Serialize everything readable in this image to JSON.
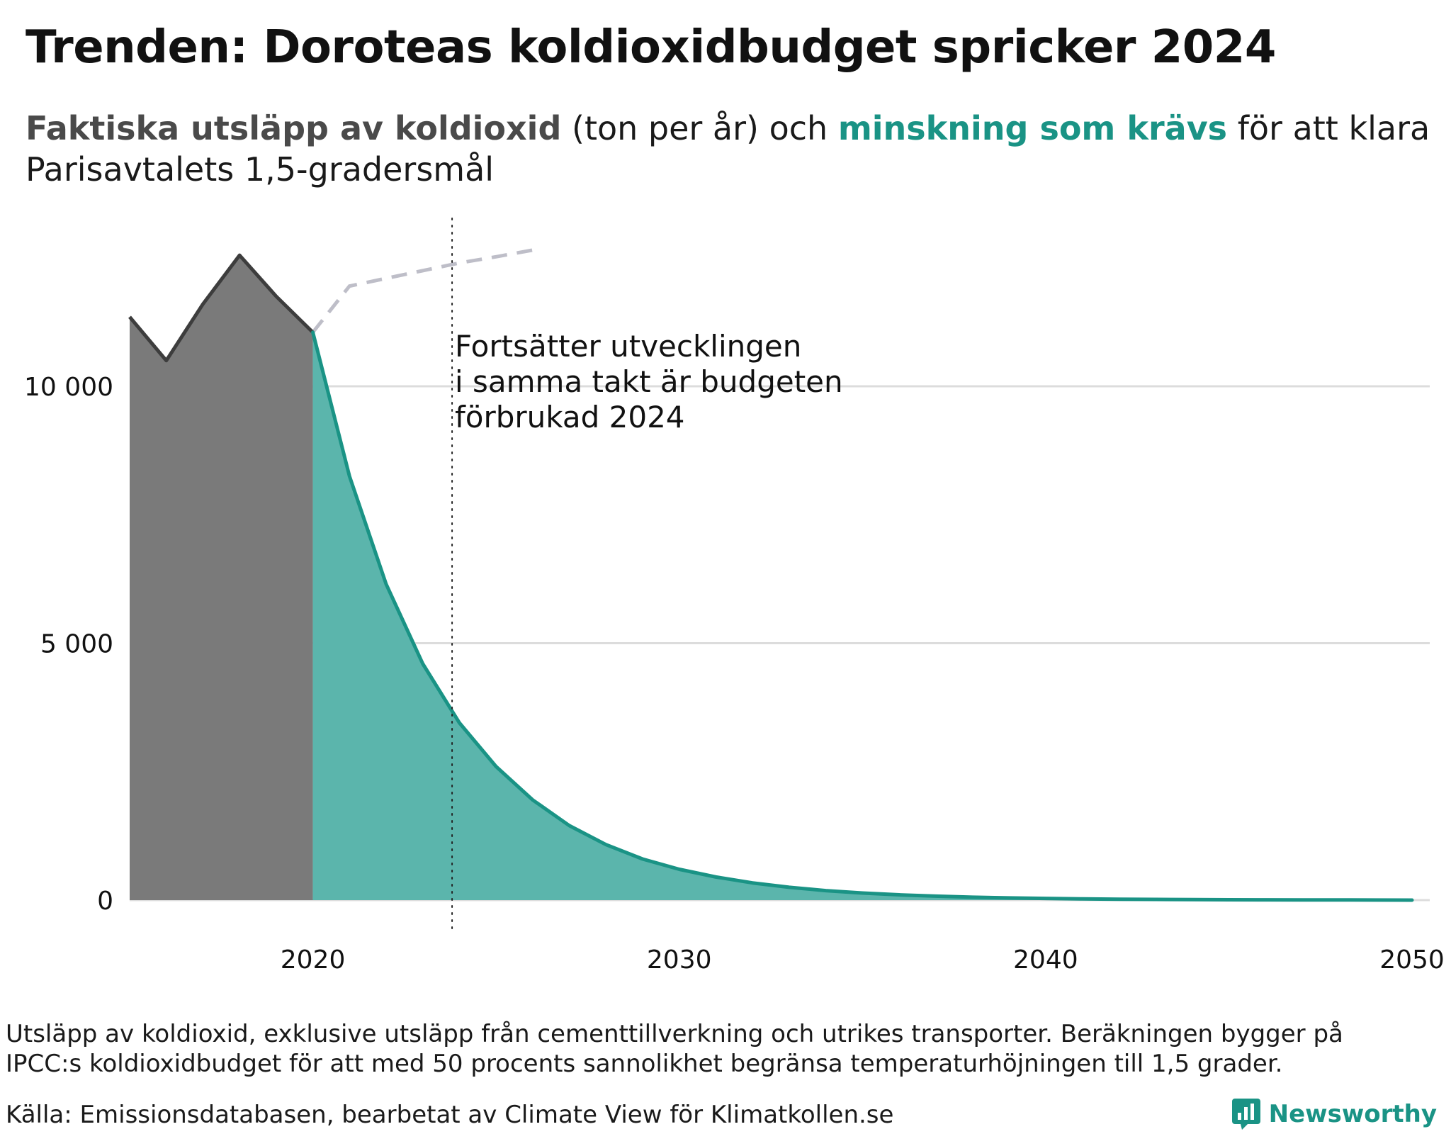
{
  "header": {
    "title": "Trenden: Doroteas koldioxidbudget spricker 2024",
    "subtitle": {
      "part_actual": "Faktiska utsläpp av koldioxid",
      "part_unit": " (ton per år) och ",
      "part_required": "minskning som krävs",
      "part_rest": " för att klara Parisavtalets 1,5-gradersmål"
    }
  },
  "colors": {
    "actual_line": "#3d3d3d",
    "actual_fill": "#7a7a7a",
    "required_line": "#1a9385",
    "required_fill": "#5bb5ac",
    "trend_line": "#bebec8",
    "grid": "#dcdcdc",
    "brand": "#1a9385"
  },
  "chart_data": {
    "type": "area",
    "xlim": [
      2015,
      2050
    ],
    "ylim": [
      0,
      12500
    ],
    "x_ticks": [
      {
        "value": 2020,
        "label": "2020"
      },
      {
        "value": 2030,
        "label": "2030"
      },
      {
        "value": 2040,
        "label": "2040"
      },
      {
        "value": 2050,
        "label": "2050"
      }
    ],
    "y_ticks": [
      {
        "value": 0,
        "label": "0"
      },
      {
        "value": 5000,
        "label": "5 000"
      },
      {
        "value": 10000,
        "label": "10 000"
      }
    ],
    "grid": "horizontal",
    "series": [
      {
        "key": "actual",
        "x": [
          2015,
          2016,
          2017,
          2018,
          2019,
          2020
        ],
        "y": [
          11350,
          10500,
          11600,
          12550,
          11750,
          11050
        ]
      },
      {
        "key": "required",
        "x": [
          2020,
          2021,
          2022,
          2023,
          2024,
          2025,
          2026,
          2027,
          2028,
          2029,
          2030,
          2031,
          2032,
          2033,
          2034,
          2035,
          2036,
          2037,
          2038,
          2039,
          2040,
          2041,
          2042,
          2043,
          2044,
          2045,
          2046,
          2047,
          2048,
          2049,
          2050
        ],
        "y": [
          11050,
          8250,
          6150,
          4600,
          3450,
          2600,
          1950,
          1450,
          1080,
          800,
          600,
          450,
          335,
          250,
          185,
          138,
          103,
          77,
          57,
          43,
          32,
          24,
          18,
          13,
          10,
          7,
          5,
          4,
          3,
          2,
          0
        ]
      },
      {
        "key": "trend",
        "x": [
          2020,
          2021,
          2022,
          2023,
          2024,
          2025,
          2026
        ],
        "y": [
          11050,
          11950,
          12100,
          12250,
          12400,
          12520,
          12650
        ]
      }
    ],
    "annotation": {
      "x": 2023.8,
      "lines": [
        "Fortsätter utvecklingen",
        "i samma takt är budgeten",
        "förbrukad 2024"
      ]
    }
  },
  "footer": {
    "note": "Utsläpp av koldioxid, exklusive utsläpp från cementtillverkning och utrikes transporter. Beräkningen bygger på IPCC:s koldioxidbudget för att med 50 procents sannolikhet begränsa temperaturhöjningen till 1,5 grader.",
    "source": "Källa: Emissionsdatabasen, bearbetat av Climate View för Klimatkollen.se",
    "brand": "Newsworthy",
    "brand_icon": "bar-chart-speech-bubble-icon"
  }
}
